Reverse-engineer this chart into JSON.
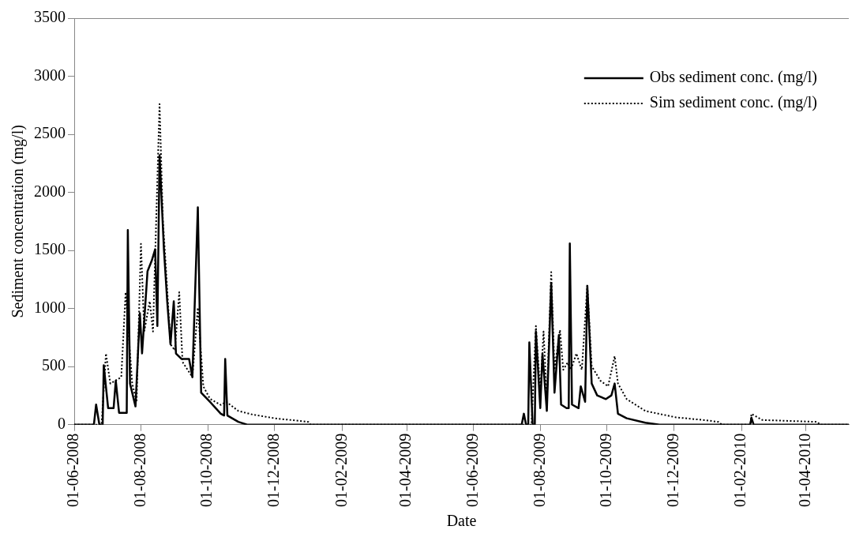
{
  "chart_data": {
    "type": "line",
    "xlabel": "Date",
    "ylabel": "Sediment concentration (mg/l)",
    "legend": "top right",
    "grid": false,
    "marker": "none",
    "xlim": [
      "2008-06-01",
      "2010-05-10"
    ],
    "xticks": [
      {
        "value": "2008-06-01",
        "label": "01-06-2008"
      },
      {
        "value": "2008-08-01",
        "label": "01-08-2008"
      },
      {
        "value": "2008-10-01",
        "label": "01-10-2008"
      },
      {
        "value": "2008-12-01",
        "label": "01-12-2008"
      },
      {
        "value": "2009-02-01",
        "label": "01-02-2009"
      },
      {
        "value": "2009-04-01",
        "label": "01-04-2009"
      },
      {
        "value": "2009-06-01",
        "label": "01-06-2009"
      },
      {
        "value": "2009-08-01",
        "label": "01-08-2009"
      },
      {
        "value": "2009-10-01",
        "label": "01-10-2009"
      },
      {
        "value": "2009-12-01",
        "label": "01-12-2009"
      },
      {
        "value": "2010-02-01",
        "label": "01-02-2010"
      },
      {
        "value": "2010-04-01",
        "label": "01-04-2010"
      }
    ],
    "ylim": [
      0,
      3500
    ],
    "yticks": [
      0,
      500,
      1000,
      1500,
      2000,
      2500,
      3000,
      3500
    ],
    "series": [
      {
        "name": "Obs sediment conc. (mg/l)",
        "color": "#000000",
        "line_style": "solid",
        "x": [
          "2008-06-01",
          "2008-06-19",
          "2008-06-21",
          "2008-06-24",
          "2008-06-27",
          "2008-06-28",
          "2008-07-02",
          "2008-07-07",
          "2008-07-09",
          "2008-07-12",
          "2008-07-19",
          "2008-07-20",
          "2008-07-22",
          "2008-07-27",
          "2008-07-31",
          "2008-08-02",
          "2008-08-07",
          "2008-08-11",
          "2008-08-14",
          "2008-08-16",
          "2008-08-18",
          "2008-08-22",
          "2008-08-25",
          "2008-08-28",
          "2008-08-31",
          "2008-09-02",
          "2008-09-07",
          "2008-09-14",
          "2008-09-17",
          "2008-09-22",
          "2008-09-25",
          "2008-10-03",
          "2008-10-13",
          "2008-10-16",
          "2008-10-17",
          "2008-10-19",
          "2008-10-29",
          "2008-11-06",
          "2009-07-15",
          "2009-07-17",
          "2009-07-19",
          "2009-07-21",
          "2009-07-22",
          "2009-07-25",
          "2009-07-27",
          "2009-07-28",
          "2009-08-01",
          "2009-08-03",
          "2009-08-07",
          "2009-08-11",
          "2009-08-14",
          "2009-08-18",
          "2009-08-20",
          "2009-08-25",
          "2009-08-27",
          "2009-08-28",
          "2009-08-30",
          "2009-09-05",
          "2009-09-07",
          "2009-09-11",
          "2009-09-13",
          "2009-09-17",
          "2009-09-22",
          "2009-09-30",
          "2009-10-05",
          "2009-10-08",
          "2009-10-11",
          "2009-10-19",
          "2009-11-05",
          "2009-11-18",
          "2010-02-09",
          "2010-02-10",
          "2010-02-12",
          "2010-05-10"
        ],
        "values": [
          0,
          0,
          173,
          0,
          0,
          511,
          142,
          142,
          378,
          102,
          102,
          1675,
          354,
          157,
          960,
          613,
          1321,
          1416,
          1510,
          850,
          2320,
          1510,
          1062,
          692,
          1062,
          613,
          566,
          566,
          409,
          1872,
          275,
          197,
          94,
          79,
          566,
          79,
          24,
          0,
          0,
          94,
          0,
          0,
          708,
          0,
          0,
          802,
          142,
          613,
          118,
          1219,
          275,
          771,
          173,
          142,
          142,
          1560,
          173,
          142,
          330,
          197,
          1195,
          354,
          252,
          220,
          252,
          354,
          94,
          55,
          16,
          0,
          0,
          60,
          0,
          0
        ]
      },
      {
        "name": "Sim sediment conc. (mg/l)",
        "color": "#000000",
        "line_style": "dotted",
        "x": [
          "2008-06-01",
          "2008-06-26",
          "2008-06-30",
          "2008-07-04",
          "2008-07-14",
          "2008-07-18",
          "2008-07-24",
          "2008-07-28",
          "2008-08-01",
          "2008-08-04",
          "2008-08-09",
          "2008-08-12",
          "2008-08-18",
          "2008-08-21",
          "2008-08-24",
          "2008-08-28",
          "2008-09-01",
          "2008-09-05",
          "2008-09-08",
          "2008-09-17",
          "2008-09-22",
          "2008-09-27",
          "2008-10-03",
          "2008-10-13",
          "2008-10-18",
          "2008-10-29",
          "2008-11-11",
          "2008-12-01",
          "2009-01-01",
          "2009-01-03",
          "2009-07-24",
          "2009-07-28",
          "2009-08-01",
          "2009-08-04",
          "2009-08-07",
          "2009-08-11",
          "2009-08-14",
          "2009-08-19",
          "2009-08-22",
          "2009-08-26",
          "2009-08-29",
          "2009-09-03",
          "2009-09-08",
          "2009-09-13",
          "2009-09-17",
          "2009-09-25",
          "2009-10-02",
          "2009-10-08",
          "2009-10-11",
          "2009-10-19",
          "2009-11-05",
          "2009-12-03",
          "2009-12-29",
          "2010-01-11",
          "2010-01-14",
          "2010-02-09",
          "2010-02-10",
          "2010-02-20",
          "2010-04-11",
          "2010-04-14",
          "2010-05-10"
        ],
        "values": [
          0,
          0,
          613,
          354,
          409,
          1140,
          354,
          197,
          1557,
          802,
          1062,
          802,
          2760,
          1770,
          1321,
          692,
          640,
          1140,
          540,
          409,
          1007,
          330,
          223,
          170,
          197,
          118,
          87,
          55,
          24,
          0,
          0,
          850,
          275,
          802,
          220,
          1313,
          472,
          814,
          472,
          535,
          472,
          613,
          472,
          1203,
          503,
          378,
          330,
          590,
          354,
          220,
          118,
          63,
          39,
          24,
          0,
          0,
          94,
          40,
          24,
          0,
          0
        ]
      }
    ]
  }
}
